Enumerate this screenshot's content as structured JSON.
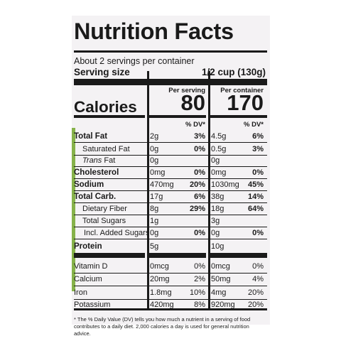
{
  "title": "Nutrition Facts",
  "servings_per_container": "About 2 servings per container",
  "serving_size_label": "Serving size",
  "serving_size_value": "1/2 cup (130g)",
  "per_serving_label": "Per serving",
  "per_container_label": "Per container",
  "calories_label": "Calories",
  "calories_serving": "80",
  "calories_container": "170",
  "dv_label": "% DV*",
  "nutrients": [
    {
      "label": "Total Fat",
      "amt1": "2g",
      "dv1": "3%",
      "amt2": "4.5g",
      "dv2": "6%"
    },
    {
      "label": "Saturated Fat",
      "amt1": "0g",
      "dv1": "0%",
      "amt2": "0.5g",
      "dv2": "3%"
    },
    {
      "label": "Trans",
      "label_suffix": "Fat",
      "amt1": "0g",
      "dv1": "",
      "amt2": "0g",
      "dv2": ""
    },
    {
      "label": "Cholesterol",
      "amt1": "0mg",
      "dv1": "0%",
      "amt2": "0mg",
      "dv2": "0%"
    },
    {
      "label": "Sodium",
      "amt1": "470mg",
      "dv1": "20%",
      "amt2": "1030mg",
      "dv2": "45%"
    },
    {
      "label": "Total Carb.",
      "amt1": "17g",
      "dv1": "6%",
      "amt2": "38g",
      "dv2": "14%"
    },
    {
      "label": "Dietary Fiber",
      "amt1": "8g",
      "dv1": "29%",
      "amt2": "18g",
      "dv2": "64%"
    },
    {
      "label": "Total Sugars",
      "amt1": "1g",
      "dv1": "",
      "amt2": "3g",
      "dv2": ""
    },
    {
      "label": "Incl. Added Sugars",
      "amt1": "0g",
      "dv1": "0%",
      "amt2": "0g",
      "dv2": "0%"
    },
    {
      "label": "Protein",
      "amt1": "5g",
      "dv1": "",
      "amt2": "10g",
      "dv2": ""
    }
  ],
  "vitamins": [
    {
      "label": "Vitamin D",
      "amt1": "0mcg",
      "dv1": "0%",
      "amt2": "0mcg",
      "dv2": "0%"
    },
    {
      "label": "Calcium",
      "amt1": "20mg",
      "dv1": "2%",
      "amt2": "50mg",
      "dv2": "4%"
    },
    {
      "label": "Iron",
      "amt1": "1.8mg",
      "dv1": "10%",
      "amt2": "4mg",
      "dv2": "20%"
    },
    {
      "label": "Potassium",
      "amt1": "420mg",
      "dv1": "8%",
      "amt2": "920mg",
      "dv2": "20%"
    }
  ],
  "footnote": "* The % Daily Value (DV) tells you how much a nutrient in a serving of food contributes to a daily diet. 2,000 calories a day is used for general nutrition advice.",
  "colors": {
    "ink": "#1a1a1a",
    "background": "#f4f2f4",
    "accent": "#86b24a"
  }
}
